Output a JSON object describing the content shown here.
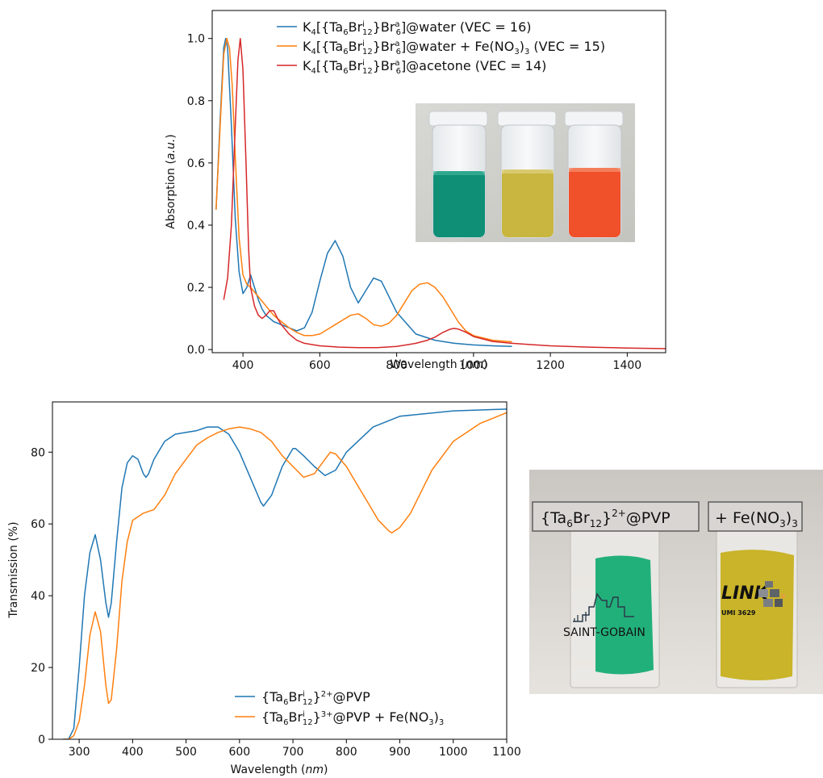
{
  "chart_data": [
    {
      "type": "line",
      "xlabel": "Wavelength (nm)",
      "ylabel": "Absorption (a.u.)",
      "xlim": [
        320,
        1500
      ],
      "ylim": [
        -0.01,
        1.09
      ],
      "x_ticks": [
        400,
        600,
        800,
        1000,
        1200,
        1400
      ],
      "y_ticks": [
        0.0,
        0.2,
        0.4,
        0.6,
        0.8,
        1.0
      ],
      "x_tick_labels": [
        "400",
        "600",
        "800",
        "1000",
        "1200",
        "1400"
      ],
      "y_tick_labels": [
        "0.0",
        "0.2",
        "0.4",
        "0.6",
        "0.8",
        "1.0"
      ],
      "legend_placement": "top",
      "series": [
        {
          "name": "K4[{Ta6Bri12}Bra6]@water (VEC = 16)",
          "color": "#1f77b4",
          "x": [
            330,
            340,
            350,
            355,
            360,
            370,
            380,
            390,
            400,
            410,
            420,
            430,
            440,
            450,
            460,
            470,
            480,
            500,
            520,
            540,
            560,
            580,
            600,
            620,
            640,
            660,
            680,
            700,
            720,
            740,
            760,
            780,
            800,
            850,
            900,
            950,
            1000,
            1050,
            1100
          ],
          "y": [
            0.45,
            0.72,
            0.97,
            1.0,
            0.97,
            0.72,
            0.42,
            0.25,
            0.18,
            0.2,
            0.24,
            0.2,
            0.16,
            0.13,
            0.11,
            0.1,
            0.09,
            0.08,
            0.07,
            0.06,
            0.07,
            0.12,
            0.22,
            0.31,
            0.35,
            0.3,
            0.2,
            0.15,
            0.19,
            0.23,
            0.22,
            0.17,
            0.12,
            0.05,
            0.03,
            0.02,
            0.015,
            0.012,
            0.01
          ]
        },
        {
          "name": "K4[{Ta6Bri12}Bra6]@water + Fe(NO3)3 (VEC = 15)",
          "color": "#ff7f0e",
          "x": [
            330,
            340,
            350,
            358,
            365,
            372,
            380,
            390,
            400,
            410,
            420,
            440,
            460,
            480,
            500,
            520,
            540,
            560,
            580,
            600,
            620,
            640,
            660,
            680,
            700,
            720,
            740,
            760,
            780,
            800,
            820,
            840,
            860,
            880,
            900,
            920,
            940,
            960,
            980,
            1000,
            1050,
            1100
          ],
          "y": [
            0.45,
            0.7,
            0.95,
            1.0,
            0.97,
            0.85,
            0.62,
            0.36,
            0.24,
            0.21,
            0.2,
            0.17,
            0.14,
            0.11,
            0.09,
            0.07,
            0.055,
            0.045,
            0.045,
            0.05,
            0.065,
            0.08,
            0.095,
            0.11,
            0.115,
            0.1,
            0.08,
            0.075,
            0.085,
            0.11,
            0.15,
            0.19,
            0.21,
            0.215,
            0.2,
            0.17,
            0.13,
            0.09,
            0.06,
            0.045,
            0.03,
            0.025
          ]
        },
        {
          "name": "K4[{Ta6Bri12}Bra6]@acetone (VEC = 14)",
          "color": "#d62728",
          "x": [
            350,
            360,
            370,
            380,
            387,
            393,
            400,
            408,
            415,
            420,
            430,
            440,
            450,
            460,
            470,
            480,
            490,
            500,
            520,
            540,
            560,
            600,
            650,
            700,
            750,
            800,
            850,
            880,
            900,
            920,
            940,
            950,
            960,
            980,
            1000,
            1050,
            1100,
            1150,
            1200,
            1300,
            1400,
            1500
          ],
          "y": [
            0.16,
            0.23,
            0.4,
            0.72,
            0.93,
            1.0,
            0.9,
            0.6,
            0.32,
            0.2,
            0.14,
            0.11,
            0.1,
            0.11,
            0.125,
            0.125,
            0.1,
            0.08,
            0.05,
            0.03,
            0.02,
            0.012,
            0.008,
            0.006,
            0.006,
            0.01,
            0.02,
            0.03,
            0.04,
            0.055,
            0.066,
            0.068,
            0.066,
            0.056,
            0.042,
            0.026,
            0.02,
            0.016,
            0.012,
            0.008,
            0.005,
            0.003
          ]
        }
      ]
    },
    {
      "type": "line",
      "xlabel": "Wavelength (nm)",
      "ylabel": "Transmission (%)",
      "xlim": [
        250,
        1100
      ],
      "ylim": [
        0,
        94
      ],
      "x_ticks": [
        300,
        400,
        500,
        600,
        700,
        800,
        900,
        1000,
        1100
      ],
      "y_ticks": [
        0,
        20,
        40,
        60,
        80
      ],
      "x_tick_labels": [
        "300",
        "400",
        "500",
        "600",
        "700",
        "800",
        "900",
        "1000",
        "1100"
      ],
      "y_tick_labels": [
        "0",
        "20",
        "40",
        "60",
        "80"
      ],
      "legend_placement": "bottom-right",
      "series": [
        {
          "name": "{Ta6Bri12}2+@PVP",
          "color": "#1f77b4",
          "x": [
            270,
            280,
            290,
            300,
            310,
            320,
            330,
            340,
            350,
            355,
            360,
            370,
            380,
            390,
            400,
            410,
            420,
            425,
            430,
            440,
            460,
            480,
            500,
            520,
            540,
            560,
            580,
            600,
            620,
            640,
            645,
            660,
            680,
            700,
            705,
            720,
            740,
            760,
            780,
            800,
            850,
            900,
            1000,
            1100
          ],
          "y": [
            0,
            0,
            3,
            20,
            40,
            52,
            57,
            50,
            38,
            34,
            38,
            55,
            70,
            77,
            79,
            78,
            74,
            73,
            74,
            78,
            83,
            85,
            85.5,
            86,
            87,
            87,
            85,
            80,
            73,
            66,
            65,
            68,
            76,
            81,
            81,
            79,
            76,
            73.5,
            75,
            80,
            87,
            90,
            91.5,
            92
          ]
        },
        {
          "name": "{Ta6Bri12}3+@PVP + Fe(NO3)3",
          "color": "#ff7f0e",
          "x": [
            270,
            280,
            290,
            300,
            310,
            320,
            330,
            340,
            350,
            355,
            360,
            370,
            380,
            390,
            400,
            420,
            440,
            460,
            480,
            500,
            520,
            540,
            560,
            580,
            600,
            620,
            640,
            660,
            680,
            700,
            720,
            740,
            760,
            770,
            780,
            800,
            820,
            840,
            860,
            880,
            885,
            900,
            920,
            940,
            960,
            1000,
            1050,
            1100
          ],
          "y": [
            0,
            0,
            1,
            5,
            15,
            29,
            35.5,
            30,
            15,
            10,
            11,
            25,
            44,
            55,
            61,
            63,
            64,
            68,
            74,
            78,
            82,
            84,
            85.5,
            86.5,
            87,
            86.5,
            85.5,
            83,
            79,
            76,
            73,
            74,
            78,
            80,
            79.5,
            76,
            71,
            66,
            61,
            58,
            57.5,
            59,
            63,
            69,
            75,
            83,
            88,
            91
          ]
        }
      ]
    }
  ],
  "top_chart": {
    "legend": [
      {
        "pre": "K",
        "s1": "4",
        "mid1": "[{Ta",
        "s2": "6",
        "mid2": "Br",
        "sup1": "i",
        "s3": "12",
        "mid3": "}Br",
        "sup2": "a",
        "s4": "6",
        "post": "]@water (VEC = 16)"
      },
      {
        "pre": "K",
        "s1": "4",
        "mid1": "[{Ta",
        "s2": "6",
        "mid2": "Br",
        "sup1": "i",
        "s3": "12",
        "mid3": "}Br",
        "sup2": "a",
        "s4": "6",
        "post": "]@water + Fe(NO",
        "s5": "3",
        "post2": ")",
        "s6": "3",
        "post3": " (VEC = 15)"
      },
      {
        "pre": "K",
        "s1": "4",
        "mid1": "[{Ta",
        "s2": "6",
        "mid2": "Br",
        "sup1": "i",
        "s3": "12",
        "mid3": "}Br",
        "sup2": "a",
        "s4": "6",
        "post": "]@acetone (VEC = 14)"
      }
    ],
    "ylabel_parts": {
      "a": "Absorption (",
      "b": "a.u.",
      "c": ")"
    },
    "xlabel_parts": {
      "a": "Wavelength (",
      "b": "nm",
      "c": ")"
    },
    "photo": {
      "vial_colors": [
        "#0f8f76",
        "#c9b640",
        "#f0502a"
      ]
    }
  },
  "bottom_chart": {
    "legend": [
      {
        "a": "{Ta",
        "b": "6",
        "c": "Br",
        "d": "i",
        "e": "12",
        "f": "}",
        "g": "2+",
        "h": "@PVP"
      },
      {
        "a": "{Ta",
        "b": "6",
        "c": "Br",
        "d": "i",
        "e": "12",
        "f": "}",
        "g": "3+",
        "h": "@PVP + Fe(NO",
        "i": "3",
        "j": ")",
        "k": "3"
      }
    ],
    "ylabel": "Transmission (%)",
    "xlabel_parts": {
      "a": "Wavelength (",
      "b": "nm",
      "c": ")"
    }
  },
  "photo2": {
    "label1_parts": {
      "a": "{Ta",
      "b": "6",
      "c": "Br",
      "d": "12",
      "e": "}",
      "f": "2+",
      "g": "@PVP"
    },
    "label2_parts": {
      "a": "+ Fe(NO",
      "b": "3",
      "c": ")",
      "d": "3"
    },
    "logo1": "SAINT-GOBAIN",
    "logo2_word": "LINK",
    "logo2_sub": "UMI 3629",
    "film_colors": [
      "#22b07a",
      "#c9b42a"
    ]
  }
}
